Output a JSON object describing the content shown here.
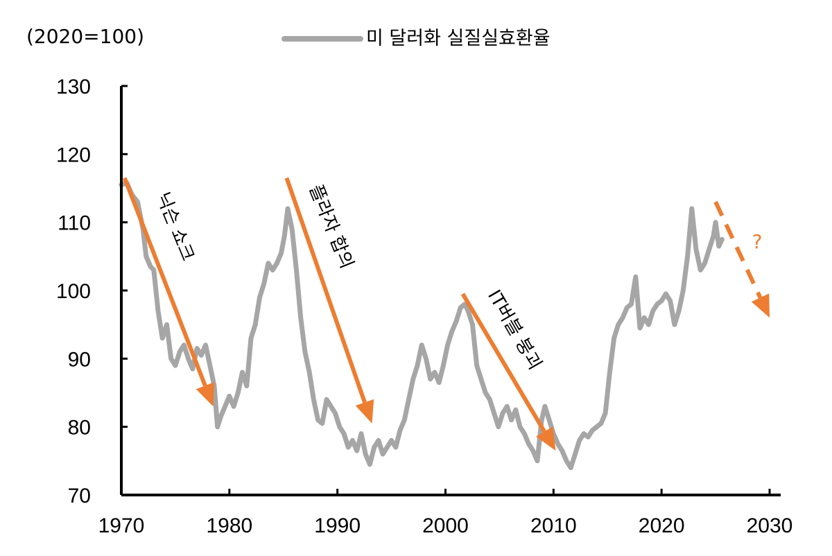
{
  "chart_data": {
    "type": "line",
    "unit_label": "(2020=100)",
    "series": [
      {
        "name": "미 달러화 실질실효환율",
        "color": "#A6A6A6",
        "x": [
          1970.0,
          1970.5,
          1971.0,
          1971.5,
          1972.0,
          1972.3,
          1972.7,
          1973.0,
          1973.4,
          1973.8,
          1974.2,
          1974.6,
          1975.0,
          1975.4,
          1975.8,
          1976.2,
          1976.6,
          1977.0,
          1977.4,
          1977.8,
          1978.2,
          1978.6,
          1978.9,
          1979.2,
          1979.6,
          1980.0,
          1980.4,
          1980.8,
          1981.2,
          1981.6,
          1982.0,
          1982.4,
          1982.8,
          1983.2,
          1983.6,
          1984.0,
          1984.4,
          1984.8,
          1985.1,
          1985.4,
          1985.8,
          1986.2,
          1986.6,
          1987.0,
          1987.4,
          1987.8,
          1988.2,
          1988.6,
          1989.0,
          1989.4,
          1989.8,
          1990.2,
          1990.6,
          1991.0,
          1991.4,
          1991.8,
          1992.2,
          1992.6,
          1993.0,
          1993.4,
          1993.8,
          1994.2,
          1994.6,
          1995.0,
          1995.4,
          1995.8,
          1996.2,
          1996.6,
          1997.0,
          1997.4,
          1997.8,
          1998.2,
          1998.6,
          1999.0,
          1999.4,
          1999.8,
          2000.2,
          2000.6,
          2001.0,
          2001.4,
          2001.8,
          2002.1,
          2002.5,
          2002.9,
          2003.3,
          2003.7,
          2004.1,
          2004.5,
          2004.9,
          2005.3,
          2005.7,
          2006.1,
          2006.5,
          2006.9,
          2007.3,
          2007.7,
          2008.1,
          2008.5,
          2008.9,
          2009.2,
          2009.6,
          2010.0,
          2010.4,
          2010.8,
          2011.2,
          2011.6,
          2012.0,
          2012.4,
          2012.8,
          2013.2,
          2013.6,
          2014.0,
          2014.4,
          2014.8,
          2015.2,
          2015.6,
          2016.0,
          2016.4,
          2016.8,
          2017.2,
          2017.6,
          2018.0,
          2018.4,
          2018.8,
          2019.2,
          2019.6,
          2020.0,
          2020.4,
          2020.8,
          2021.2,
          2021.6,
          2022.0,
          2022.4,
          2022.8,
          2023.2,
          2023.6,
          2024.0,
          2024.4,
          2024.8,
          2025.0,
          2025.3,
          2025.6
        ],
        "values": [
          115.5,
          115.8,
          114.0,
          113.0,
          109.0,
          105.0,
          103.5,
          103.0,
          97.0,
          93.0,
          95.0,
          90.0,
          89.0,
          91.0,
          92.0,
          90.0,
          88.5,
          91.5,
          90.5,
          92.0,
          89.0,
          86.0,
          80.0,
          81.5,
          83.0,
          84.5,
          83.0,
          85.0,
          88.0,
          86.0,
          93.0,
          95.0,
          99.0,
          101.0,
          104.0,
          103.0,
          104.0,
          105.5,
          108.0,
          112.0,
          109.0,
          103.0,
          96.0,
          91.0,
          88.0,
          84.0,
          81.0,
          80.5,
          84.0,
          83.0,
          82.0,
          80.0,
          79.0,
          77.0,
          78.0,
          76.5,
          79.0,
          76.0,
          74.5,
          77.0,
          78.0,
          76.0,
          77.0,
          78.0,
          77.0,
          79.5,
          81.0,
          84.0,
          87.0,
          89.0,
          92.0,
          90.0,
          87.0,
          88.0,
          86.5,
          89.0,
          92.0,
          94.0,
          95.5,
          97.5,
          98.0,
          97.0,
          95.0,
          89.0,
          87.0,
          85.0,
          84.0,
          82.0,
          80.0,
          82.0,
          83.0,
          81.0,
          82.5,
          80.0,
          79.0,
          77.5,
          76.5,
          75.0,
          81.0,
          83.0,
          81.0,
          79.0,
          77.5,
          76.5,
          75.0,
          74.0,
          76.0,
          78.0,
          79.0,
          78.5,
          79.5,
          80.0,
          80.5,
          82.0,
          88.0,
          93.0,
          95.0,
          96.0,
          97.5,
          98.0,
          102.0,
          94.5,
          96.0,
          95.0,
          97.0,
          98.0,
          98.5,
          99.5,
          98.5,
          95.0,
          97.0,
          100.0,
          105.0,
          112.0,
          106.0,
          103.0,
          104.0,
          106.0,
          108.0,
          110.0,
          106.5,
          107.5
        ],
        "stroke_style": "solid"
      }
    ],
    "x_axis": {
      "ticks": [
        1970,
        1980,
        1990,
        2000,
        2010,
        2020,
        2030
      ],
      "range": [
        1970,
        2030
      ]
    },
    "y_axis": {
      "ticks": [
        70,
        80,
        90,
        100,
        110,
        120,
        130
      ],
      "range": [
        70,
        130
      ]
    },
    "grid": false,
    "legend": {
      "position": "top-center",
      "label": "미 달러화 실질실효환율"
    },
    "annotations": [
      {
        "label": "닉슨 쇼크",
        "x_start": 1970.3,
        "y_start": 116.5,
        "x_end": 1978.5,
        "y_end": 83.0,
        "style": "solid",
        "color": "#ED7D31"
      },
      {
        "label": "플라자 합의",
        "x_start": 1985.3,
        "y_start": 116.5,
        "x_end": 1993.2,
        "y_end": 80.5,
        "style": "solid",
        "color": "#ED7D31"
      },
      {
        "label": "IT버블 붕괴",
        "x_start": 2001.6,
        "y_start": 99.5,
        "x_end": 2010.2,
        "y_end": 76.5,
        "style": "solid",
        "color": "#ED7D31"
      },
      {
        "label": "?",
        "x_start": 2025.0,
        "y_start": 113.0,
        "x_end": 2030.0,
        "y_end": 96.0,
        "style": "dashed",
        "color": "#ED7D31"
      }
    ]
  }
}
